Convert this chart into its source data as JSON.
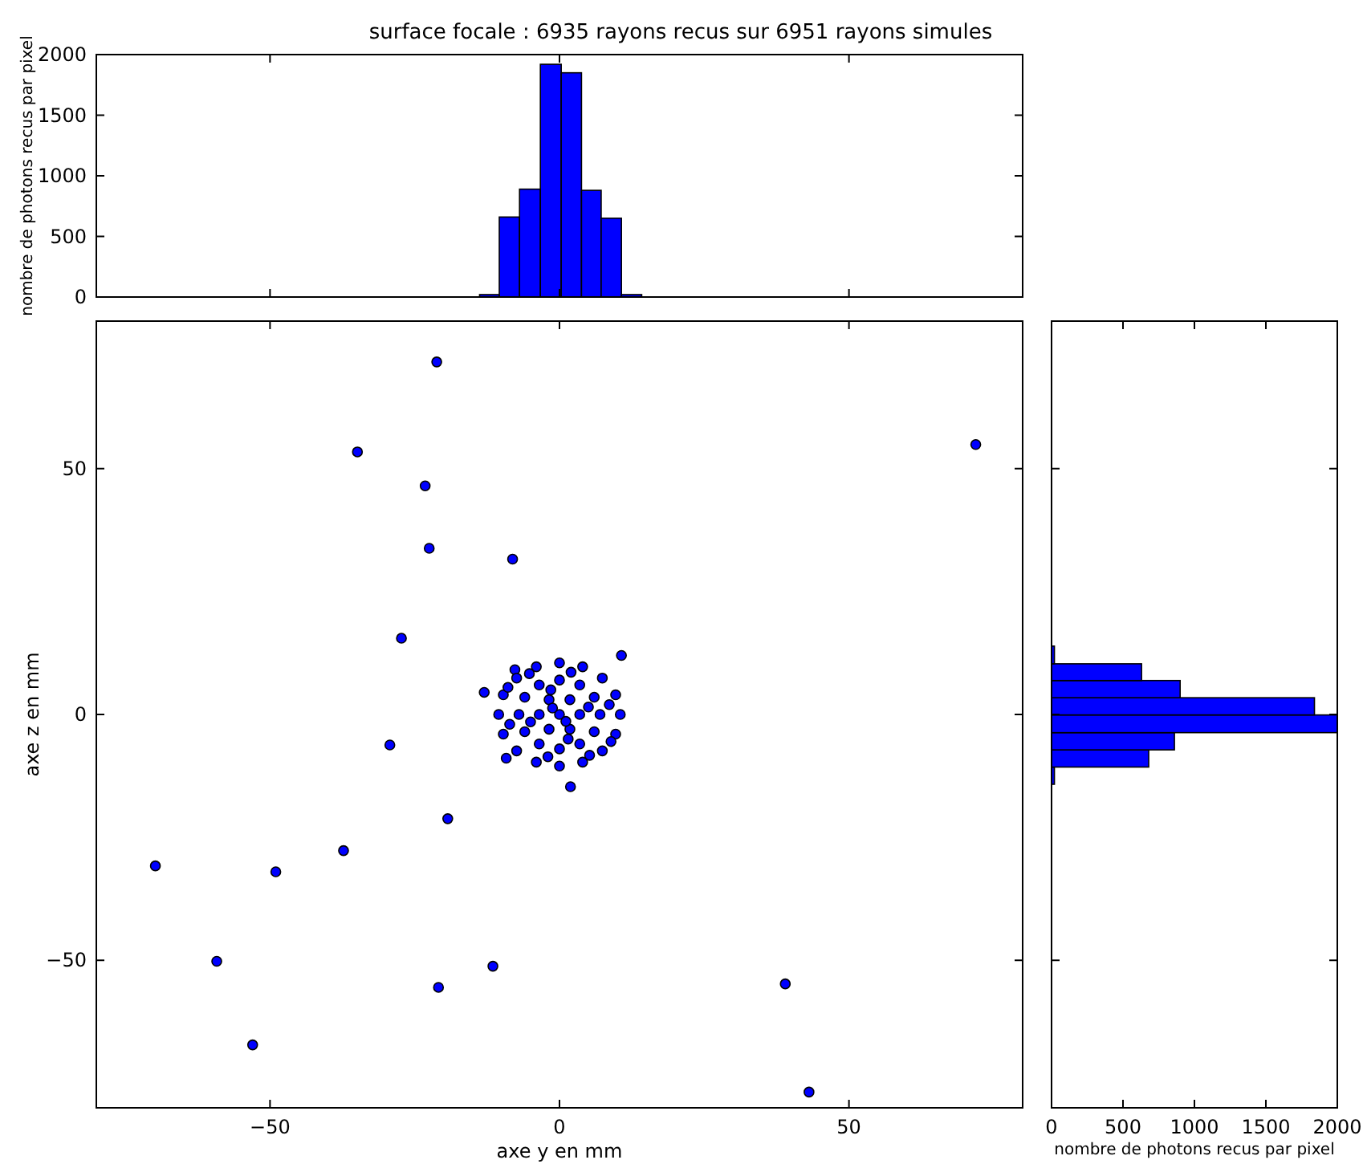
{
  "chart_data": [
    {
      "type": "histogram",
      "title": "surface focale : 6935 rayons recus sur 6951 rayons simules",
      "ylabel": "nombre de photons recus par pixel",
      "bins": [
        -13.8,
        -10.4,
        -6.9,
        -3.3,
        0.3,
        3.8,
        7.2,
        10.7,
        14.2
      ],
      "values": [
        20,
        660,
        890,
        1920,
        1850,
        880,
        650,
        20
      ],
      "color": "#0000ff",
      "xlim": [
        -80,
        80
      ],
      "xticks": [
        {
          "value": -50,
          "label": null
        },
        {
          "value": 0,
          "label": null
        },
        {
          "value": 50,
          "label": null
        }
      ],
      "ylim": [
        0,
        2000
      ],
      "yticks": [
        0,
        500,
        1000,
        1500,
        2000
      ],
      "tick_labels": "y"
    },
    {
      "type": "scatter",
      "xlabel": "axe y en mm",
      "ylabel": "axe z en mm",
      "xlim": [
        -80,
        80
      ],
      "ylim": [
        -80,
        80
      ],
      "xticks": [
        {
          "value": -50,
          "label": "−50"
        },
        0,
        50
      ],
      "yticks": [
        {
          "value": -50,
          "label": "−50"
        },
        0,
        50
      ],
      "marker": "circle",
      "series": [
        {
          "color": "#0000ff",
          "x": [
            -21.2,
            -34.9,
            71.9,
            -23.2,
            -22.5,
            -8.1,
            -27.3,
            10.7,
            -7.7,
            -13,
            -29.3,
            -9.2,
            1.9,
            -19.3,
            -37.3,
            -69.8,
            -49,
            -59.2,
            -11.5,
            -20.9,
            39,
            -53,
            43.1,
            10.5,
            9.7,
            7.4,
            4,
            0,
            -4,
            -7.4,
            -9.7,
            -10.5,
            -9.7,
            -7.4,
            -4,
            0,
            4,
            7.4,
            9.7,
            7,
            6,
            3.5,
            0,
            -3.5,
            -6,
            -7,
            -6,
            -3.5,
            0,
            3.5,
            6,
            3.5,
            1.8,
            -1.8,
            -3.5,
            -1.8,
            1.8,
            0,
            8.6,
            -8.6,
            2,
            -2,
            5.2,
            -5.2,
            8.9,
            -8.9,
            1.1,
            -1.2,
            5,
            -5,
            1.5,
            -1.5
          ],
          "values": [
            71.7,
            53.4,
            54.9,
            46.5,
            33.8,
            31.6,
            15.5,
            12,
            9.1,
            4.5,
            -6.2,
            -8.9,
            -14.7,
            -21.2,
            -27.7,
            -30.8,
            -32,
            -50.2,
            -51.2,
            -55.5,
            -54.8,
            -67.2,
            -76.8,
            0,
            4,
            7.4,
            9.7,
            10.5,
            9.7,
            7.4,
            4,
            0,
            -4,
            -7.4,
            -9.7,
            -10.5,
            -9.7,
            -7.4,
            -4,
            0,
            3.5,
            6,
            7,
            6,
            3.5,
            0,
            -3.5,
            -6,
            -7,
            -6,
            -3.5,
            0,
            3,
            3,
            0,
            -3,
            -3,
            0,
            2,
            -2,
            8.6,
            -8.6,
            -8.3,
            8.3,
            -5.5,
            5.5,
            -1.4,
            1.3,
            1.5,
            -1.5,
            -5,
            5
          ]
        }
      ]
    },
    {
      "type": "histogram",
      "orientation": "horizontal",
      "xlabel": "nombre de photons recus par pixel",
      "bins": [
        -14.2,
        -10.7,
        -7.2,
        -3.7,
        -0.1,
        3.4,
        6.9,
        10.3,
        13.9
      ],
      "values": [
        20,
        680,
        860,
        2000,
        1840,
        900,
        630,
        20
      ],
      "color": "#0000ff",
      "xlim": [
        0,
        2000
      ],
      "xticks": [
        0,
        500,
        1000,
        1500,
        2000
      ],
      "ylim": [
        -80,
        80
      ],
      "yticks": [
        {
          "value": -50,
          "label": null
        },
        {
          "value": 0,
          "label": null
        },
        {
          "value": 50,
          "label": null
        }
      ],
      "tick_labels": "x"
    }
  ]
}
